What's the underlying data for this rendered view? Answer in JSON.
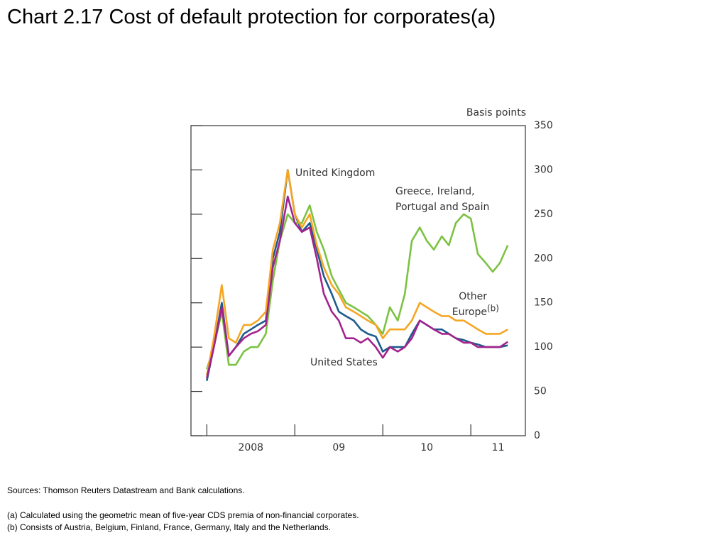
{
  "chart_data": {
    "type": "line",
    "title": "Chart 2.17  Cost of default protection for corporates(a)",
    "y_axis_label": "Basis points",
    "x": [
      2008.0,
      2008.08,
      2008.17,
      2008.25,
      2008.33,
      2008.42,
      2008.5,
      2008.58,
      2008.67,
      2008.75,
      2008.83,
      2008.92,
      2009.0,
      2009.08,
      2009.17,
      2009.25,
      2009.33,
      2009.42,
      2009.5,
      2009.58,
      2009.67,
      2009.75,
      2009.83,
      2009.92,
      2010.0,
      2010.08,
      2010.17,
      2010.25,
      2010.33,
      2010.42,
      2010.5,
      2010.58,
      2010.67,
      2010.75,
      2010.83,
      2010.92,
      2011.0,
      2011.08,
      2011.17,
      2011.25,
      2011.33,
      2011.42
    ],
    "series": [
      {
        "name": "United Kingdom",
        "color": "#1d5b8c",
        "values": [
          62,
          100,
          150,
          90,
          100,
          115,
          120,
          125,
          130,
          200,
          230,
          300,
          250,
          230,
          240,
          210,
          180,
          160,
          140,
          135,
          130,
          120,
          115,
          112,
          95,
          100,
          100,
          100,
          115,
          130,
          125,
          120,
          120,
          115,
          110,
          108,
          105,
          103,
          100,
          100,
          100,
          102
        ]
      },
      {
        "name": "Greece, Ireland, Portugal and Spain",
        "color": "#7cc242",
        "values": [
          75,
          100,
          140,
          80,
          80,
          95,
          100,
          100,
          115,
          175,
          220,
          250,
          240,
          240,
          260,
          230,
          210,
          180,
          165,
          150,
          145,
          140,
          135,
          125,
          115,
          145,
          130,
          160,
          220,
          235,
          220,
          210,
          225,
          215,
          240,
          250,
          245,
          205,
          195,
          185,
          195,
          215
        ]
      },
      {
        "name": "Other Europe",
        "note": "(b)",
        "color": "#f5a623",
        "values": [
          68,
          110,
          170,
          110,
          105,
          125,
          125,
          130,
          140,
          210,
          240,
          300,
          250,
          235,
          250,
          215,
          190,
          170,
          160,
          145,
          140,
          135,
          130,
          125,
          110,
          120,
          120,
          120,
          130,
          150,
          145,
          140,
          135,
          135,
          130,
          130,
          125,
          120,
          115,
          115,
          115,
          120
        ]
      },
      {
        "name": "United States",
        "color": "#a3238e",
        "values": [
          65,
          100,
          145,
          90,
          100,
          110,
          115,
          118,
          125,
          190,
          220,
          270,
          240,
          230,
          235,
          200,
          160,
          140,
          130,
          110,
          110,
          105,
          110,
          100,
          88,
          100,
          95,
          100,
          110,
          130,
          125,
          120,
          115,
          115,
          110,
          105,
          105,
          100,
          100,
          100,
          100,
          106
        ]
      }
    ],
    "xlim": [
      2007.82,
      2011.62
    ],
    "xticks": [
      {
        "value": 2008,
        "label": "2008"
      },
      {
        "value": 2009,
        "label": "09"
      },
      {
        "value": 2010,
        "label": "10"
      },
      {
        "value": 2011,
        "label": "11"
      }
    ],
    "ylim": [
      0,
      350
    ],
    "yticks": [
      0,
      50,
      100,
      150,
      200,
      250,
      300,
      350
    ],
    "grid": false,
    "sources": "Sources:  Thomson Reuters Datastream and Bank calculations.",
    "notes": [
      "(a)  Calculated using the geometric mean of five-year CDS premia of non-financial corporates.",
      "(b)  Consists of Austria, Belgium, Finland, France, Germany, Italy and the Netherlands."
    ]
  }
}
